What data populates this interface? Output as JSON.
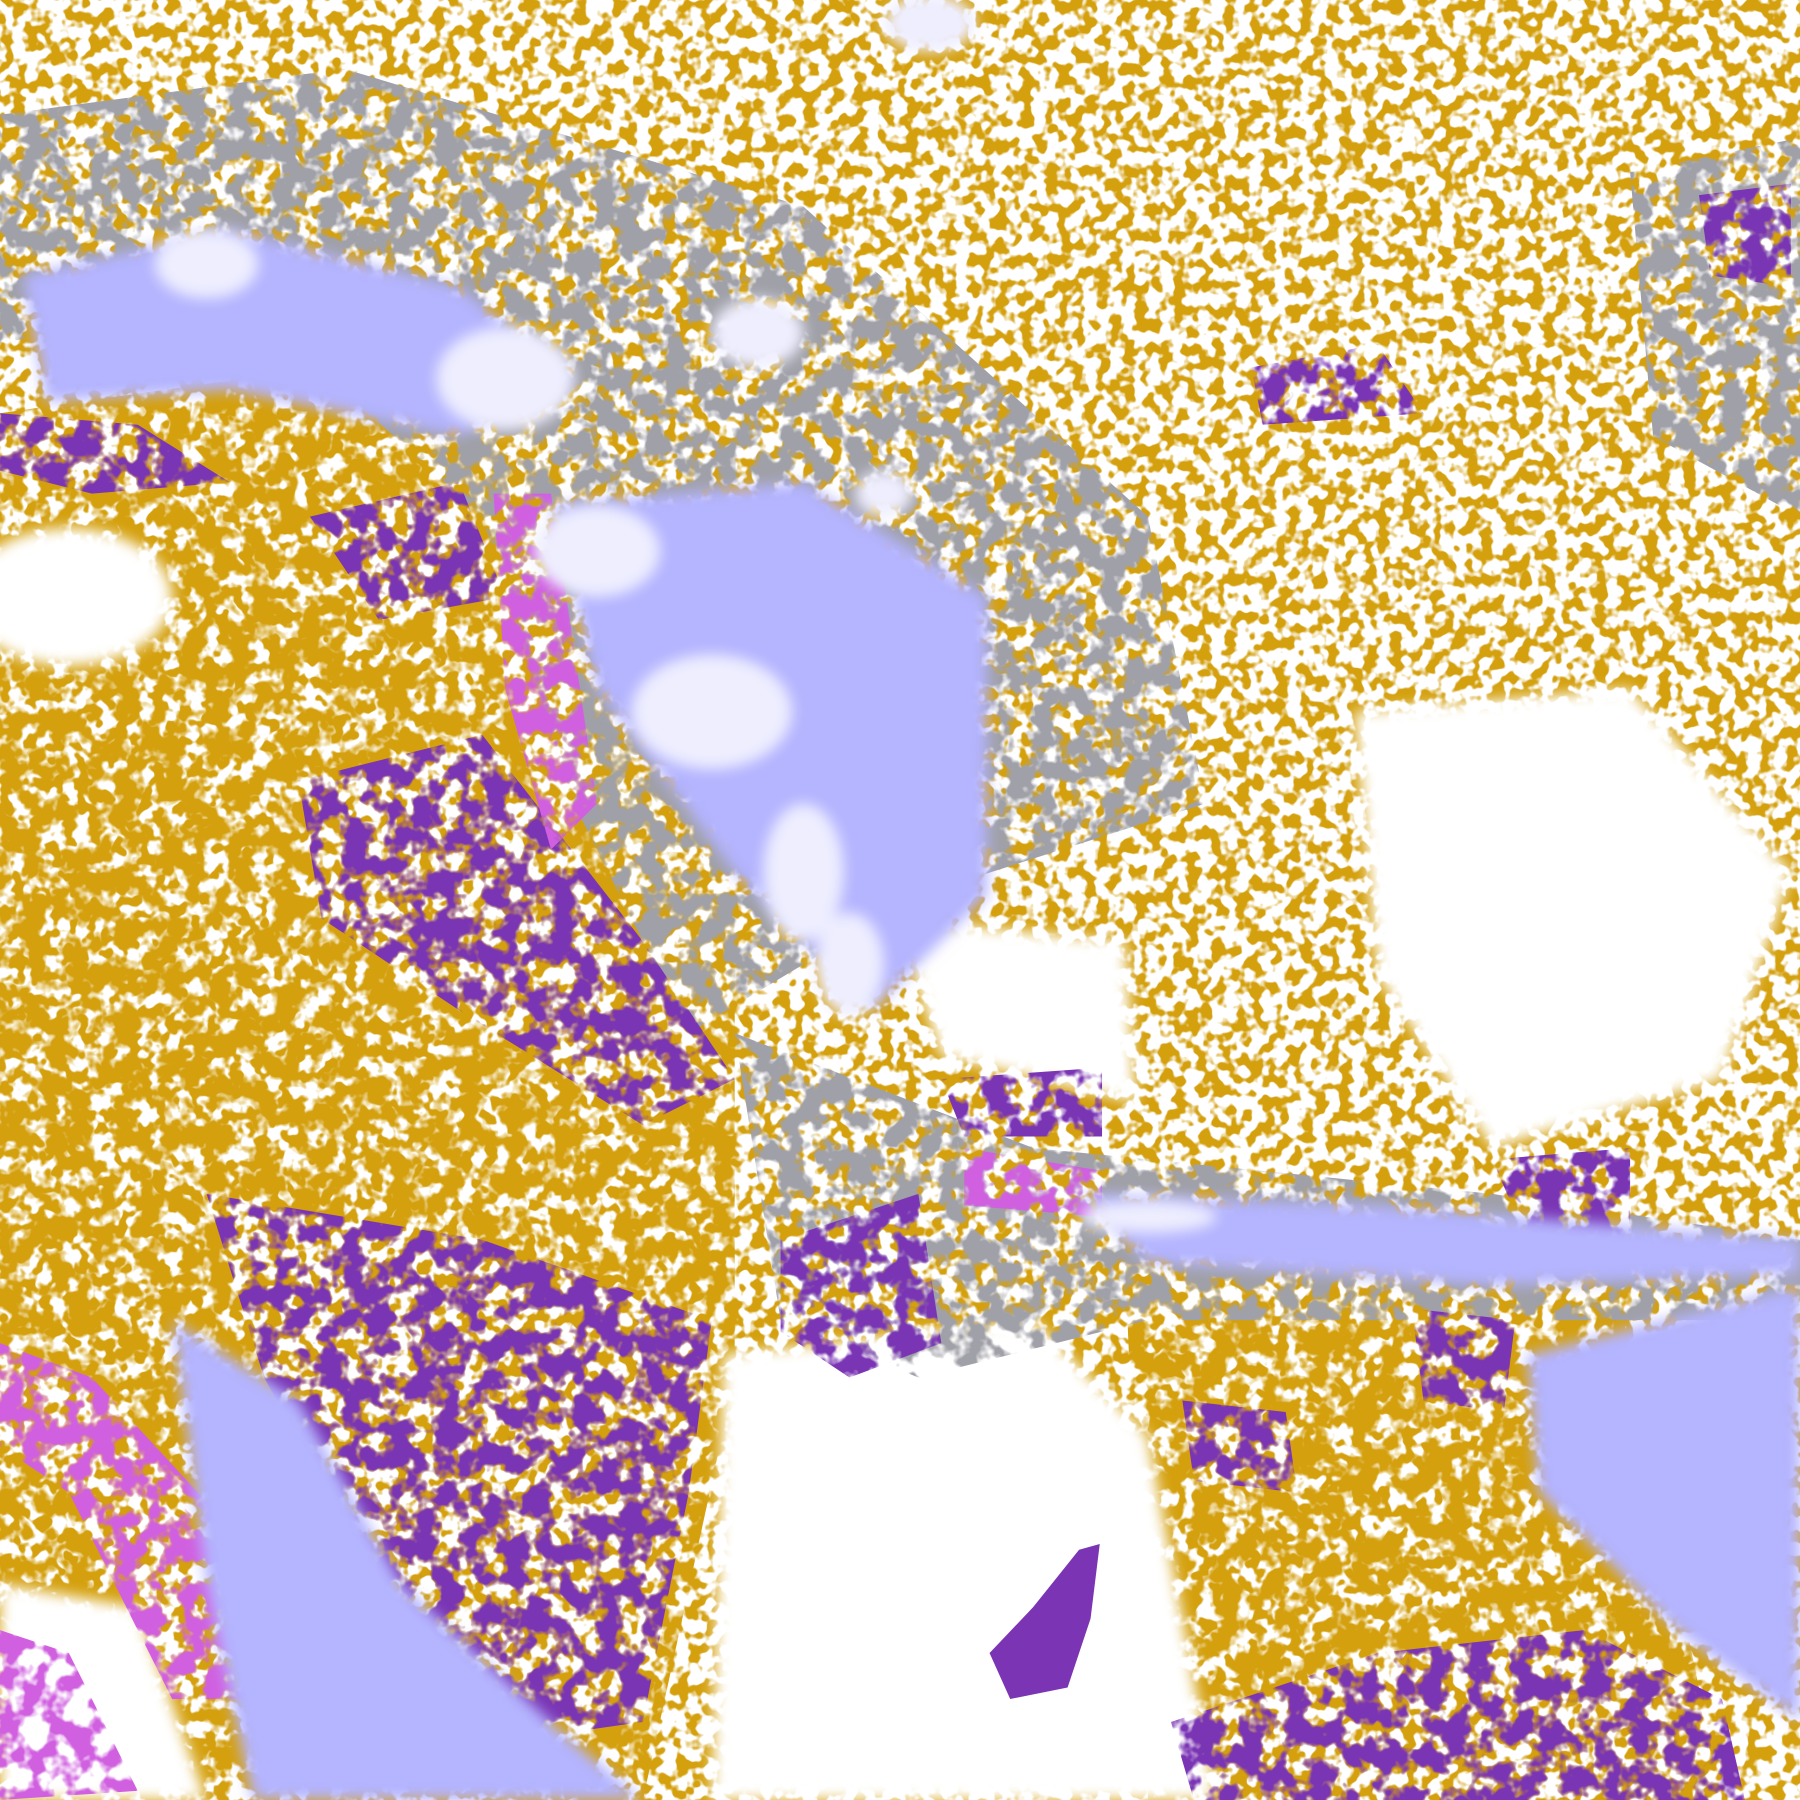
{
  "map": {
    "colors": {
      "background": "#ffffff",
      "gold": "#d4a010",
      "purple": "#7a34b4",
      "magenta": "#d060e0",
      "lavender": "#b4b4ff",
      "pale": "#eeeeff",
      "grey": "#a0a0a8"
    }
  }
}
